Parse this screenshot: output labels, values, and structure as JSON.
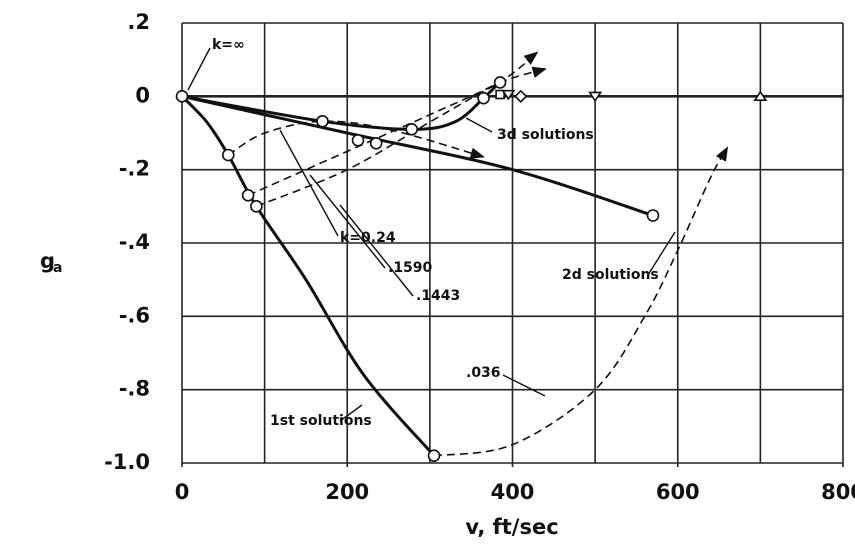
{
  "chart_data": {
    "type": "line",
    "x_label": "v,  ft/sec",
    "y_label": "g",
    "y_label_subscript": "a",
    "annotation": "k=∞",
    "xlim": [
      0,
      800
    ],
    "xticks": [
      0,
      200,
      400,
      600,
      800
    ],
    "xgrid": [
      0,
      100,
      200,
      300,
      400,
      500,
      600,
      700,
      800
    ],
    "ylim": [
      -1.0,
      0.2
    ],
    "yticks": [
      {
        "value": 0.2,
        "label": ".2"
      },
      0,
      {
        "value": -0.2,
        "label": "-.2"
      },
      {
        "value": -0.4,
        "label": "-.4"
      },
      {
        "value": -0.6,
        "label": "-.6"
      },
      {
        "value": -0.8,
        "label": "-.8"
      },
      {
        "value": -1.0,
        "label": "-1.0"
      }
    ],
    "grid": true,
    "color": "#111111",
    "series": [
      {
        "name": "1st solutions",
        "style": "solid",
        "x": [
          0,
          30,
          56,
          90,
          150,
          220,
          305
        ],
        "values": [
          0,
          -0.07,
          -0.16,
          -0.3,
          -0.5,
          -0.76,
          -0.98
        ]
      },
      {
        "name": "2d solutions",
        "style": "solid",
        "x": [
          0,
          200,
          400,
          570
        ],
        "values": [
          0,
          -0.1,
          -0.2,
          -0.325
        ]
      },
      {
        "name": "3d solutions",
        "style": "solid",
        "x": [
          0,
          170,
          278,
          330,
          365,
          385
        ],
        "values": [
          0,
          -0.068,
          -0.09,
          -0.07,
          -0.005,
          0.04
        ]
      },
      {
        "name": "k=0.24",
        "style": "dashed",
        "x": [
          56,
          100,
          170,
          250,
          365
        ],
        "values": [
          -0.16,
          -0.1,
          -0.068,
          -0.09,
          -0.165
        ]
      },
      {
        "name": ".1590",
        "style": "dashed",
        "x": [
          80,
          200,
          300,
          385,
          430
        ],
        "values": [
          -0.27,
          -0.15,
          -0.05,
          0.04,
          0.12
        ]
      },
      {
        "name": ".1443",
        "style": "dashed",
        "x": [
          90,
          200,
          300,
          370,
          400,
          440
        ],
        "values": [
          -0.3,
          -0.2,
          -0.07,
          0.02,
          0.05,
          0.075
        ]
      },
      {
        "name": ".036",
        "style": "dashed",
        "x": [
          305,
          400,
          500,
          560,
          600,
          640,
          660
        ],
        "values": [
          -0.98,
          -0.95,
          -0.8,
          -0.6,
          -0.42,
          -0.22,
          -0.14
        ]
      }
    ],
    "markers": [
      {
        "x": 0,
        "y": 0,
        "shape": "circle"
      },
      {
        "x": 56,
        "y": -0.16,
        "shape": "circle"
      },
      {
        "x": 80,
        "y": -0.27,
        "shape": "circle"
      },
      {
        "x": 90,
        "y": -0.3,
        "shape": "circle"
      },
      {
        "x": 305,
        "y": -0.98,
        "shape": "circle"
      },
      {
        "x": 170,
        "y": -0.068,
        "shape": "circle"
      },
      {
        "x": 213,
        "y": -0.12,
        "shape": "circle"
      },
      {
        "x": 235,
        "y": -0.128,
        "shape": "circle"
      },
      {
        "x": 278,
        "y": -0.09,
        "shape": "circle"
      },
      {
        "x": 365,
        "y": -0.005,
        "shape": "circle"
      },
      {
        "x": 385,
        "y": 0.038,
        "shape": "circle"
      },
      {
        "x": 570,
        "y": -0.325,
        "shape": "circle"
      },
      {
        "x": 385,
        "y": 0.005,
        "shape": "square"
      },
      {
        "x": 395,
        "y": 0.005,
        "shape": "triangle-down"
      },
      {
        "x": 410,
        "y": 0,
        "shape": "diamond"
      },
      {
        "x": 500,
        "y": 0,
        "shape": "triangle-down"
      },
      {
        "x": 700,
        "y": 0,
        "shape": "triangle-up"
      }
    ]
  }
}
